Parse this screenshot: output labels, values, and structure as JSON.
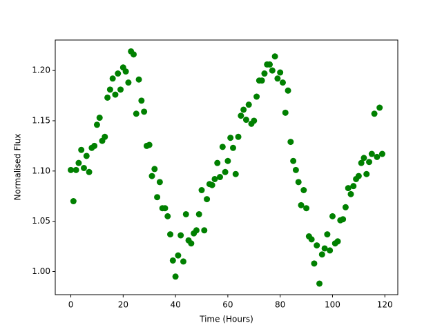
{
  "chart_data": {
    "type": "scatter",
    "x_label": "Time (Hours)",
    "y_label": "Normalised Flux",
    "color": "#008000",
    "x": [
      0,
      1,
      2,
      3,
      4,
      5,
      6,
      7,
      8,
      9,
      10,
      11,
      12,
      13,
      14,
      15,
      16,
      17,
      18,
      19,
      20,
      21,
      22,
      23,
      24,
      25,
      26,
      27,
      28,
      29,
      30,
      31,
      32,
      33,
      34,
      35,
      36,
      37,
      38,
      39,
      40,
      41,
      42,
      43,
      44,
      45,
      46,
      47,
      48,
      49,
      50,
      51,
      52,
      53,
      54,
      55,
      56,
      57,
      58,
      59,
      60,
      61,
      62,
      63,
      64,
      65,
      66,
      67,
      68,
      69,
      70,
      71,
      72,
      73,
      74,
      75,
      76,
      77,
      78,
      79,
      80,
      81,
      82,
      83,
      84,
      85,
      86,
      87,
      88,
      89,
      90,
      91,
      92,
      93,
      94,
      95,
      96,
      97,
      98,
      99,
      100,
      101,
      102,
      103,
      104,
      105,
      106,
      107,
      108,
      109,
      110,
      111,
      112,
      113,
      114,
      115,
      116,
      117,
      118,
      119
    ],
    "values": [
      1.101,
      1.07,
      1.101,
      1.108,
      1.121,
      1.103,
      1.115,
      1.099,
      1.123,
      1.125,
      1.146,
      1.153,
      1.13,
      1.134,
      1.173,
      1.181,
      1.192,
      1.176,
      1.197,
      1.181,
      1.203,
      1.199,
      1.188,
      1.219,
      1.216,
      1.157,
      1.191,
      1.17,
      1.159,
      1.125,
      1.126,
      1.095,
      1.102,
      1.074,
      1.089,
      1.063,
      1.063,
      1.055,
      1.037,
      1.011,
      0.995,
      1.016,
      1.036,
      1.01,
      1.057,
      1.031,
      1.028,
      1.038,
      1.041,
      1.057,
      1.081,
      1.041,
      1.072,
      1.087,
      1.086,
      1.092,
      1.108,
      1.094,
      1.124,
      1.099,
      1.11,
      1.133,
      1.123,
      1.097,
      1.134,
      1.155,
      1.161,
      1.151,
      1.166,
      1.147,
      1.15,
      1.174,
      1.19,
      1.19,
      1.197,
      1.206,
      1.206,
      1.2,
      1.214,
      1.192,
      1.198,
      1.188,
      1.158,
      1.18,
      1.129,
      1.11,
      1.101,
      1.089,
      1.066,
      1.081,
      1.063,
      1.035,
      1.032,
      1.008,
      1.026,
      0.988,
      1.017,
      1.023,
      1.037,
      1.021,
      1.055,
      1.028,
      1.03,
      1.051,
      1.052,
      1.064,
      1.083,
      1.077,
      1.085,
      1.092,
      1.095,
      1.108,
      1.113,
      1.097,
      1.109,
      1.117,
      1.157,
      1.114,
      1.163,
      1.117
    ],
    "xlim": [
      -5.95,
      124.95
    ],
    "ylim": [
      0.977,
      1.2303
    ],
    "xticks": [
      0,
      20,
      40,
      60,
      80,
      100,
      120
    ],
    "yticks": [
      {
        "value": 1,
        "label": "1.00"
      },
      1.05,
      {
        "value": 1.1,
        "label": "1.10"
      },
      1.15,
      {
        "value": 1.2,
        "label": "1.20"
      }
    ]
  }
}
